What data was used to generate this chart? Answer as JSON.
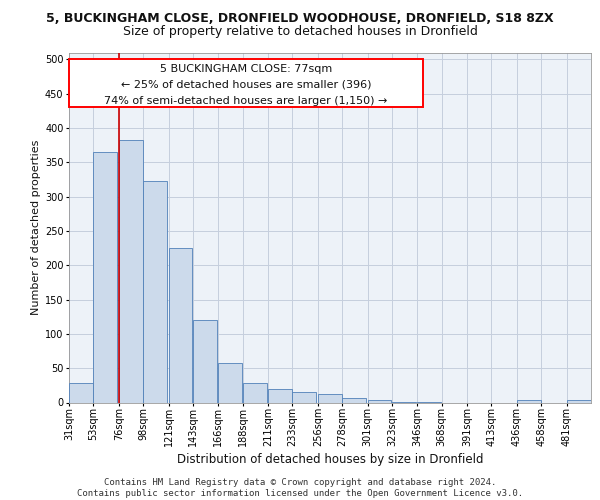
{
  "title1": "5, BUCKINGHAM CLOSE, DRONFIELD WOODHOUSE, DRONFIELD, S18 8ZX",
  "title2": "Size of property relative to detached houses in Dronfield",
  "xlabel": "Distribution of detached houses by size in Dronfield",
  "ylabel": "Number of detached properties",
  "footer1": "Contains HM Land Registry data © Crown copyright and database right 2024.",
  "footer2": "Contains public sector information licensed under the Open Government Licence v3.0.",
  "annotation_line1": "5 BUCKINGHAM CLOSE: 77sqm",
  "annotation_line2": "← 25% of detached houses are smaller (396)",
  "annotation_line3": "74% of semi-detached houses are larger (1,150) →",
  "bar_color": "#ccdaeb",
  "bar_edge_color": "#5080b8",
  "grid_color": "#c5cedd",
  "red_line_color": "#cc0000",
  "property_size_bin": 76,
  "bin_starts": [
    31,
    53,
    76,
    98,
    121,
    143,
    166,
    188,
    211,
    233,
    256,
    278,
    301,
    323,
    346,
    368,
    391,
    413,
    436,
    458,
    481
  ],
  "bin_width": 22,
  "bar_heights": [
    28,
    365,
    383,
    323,
    225,
    120,
    58,
    29,
    20,
    15,
    13,
    6,
    4,
    1,
    1,
    0,
    0,
    0,
    4,
    0,
    4
  ],
  "ylim": [
    0,
    510
  ],
  "yticks": [
    0,
    50,
    100,
    150,
    200,
    250,
    300,
    350,
    400,
    450,
    500
  ],
  "background_color": "#edf2f8",
  "title1_fontsize": 9.0,
  "title2_fontsize": 9.0,
  "xlabel_fontsize": 8.5,
  "ylabel_fontsize": 8.0,
  "tick_fontsize": 7.0,
  "ann_fontsize": 8.0,
  "footer_fontsize": 6.5
}
